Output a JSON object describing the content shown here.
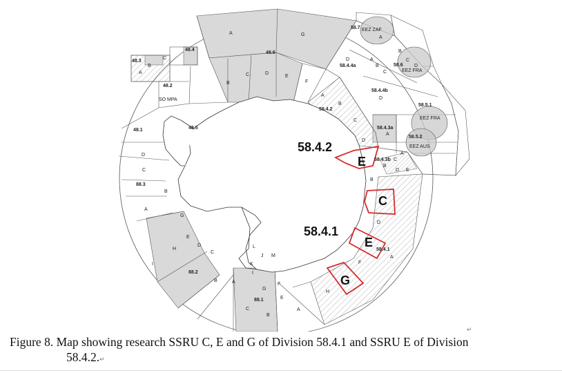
{
  "figure": {
    "caption_line1": "Figure 8. Map showing research SSRU C, E and G of Division 58.4.1 and SSRU E of Division",
    "caption_line2": "58.4.2.",
    "paragraph_mark": "↵"
  },
  "map": {
    "colors": {
      "highlight_outline": "#d42a2a",
      "shaded_area": "#d9d9d9",
      "eez_fill": "#c9c9c9",
      "line": "#555555"
    },
    "division_labels": {
      "d_48_3": "48.3",
      "d_48_4": "48.4",
      "d_48_6": "48.6",
      "d_48_2": "48.2",
      "so_mpa": "SO MPA",
      "d_48_5": "48.5",
      "d_48_1": "48.1",
      "d_88_3": "88.3",
      "d_88_2": "88.2",
      "d_88_1": "88.1",
      "d_58_7": "58.7",
      "eez_zaf": "EEZ ZAF",
      "d_58_4_4a": "58.4.4a",
      "d_58_6": "58.6",
      "eez_fra_1": "EEZ FRA",
      "d_58_4_4b": "58.4.4b",
      "d_58_5_1": "58.5.1",
      "eez_fra_2": "EEZ FRA",
      "d_58_4_2_small": "58.4.2",
      "d_58_4_3a": "58.4.3a",
      "d_58_5_2": "58.5.2",
      "eez_aus": "EEZ AUS",
      "d_58_4_3b": "58.4.3b",
      "d_58_4_1_small": "58.4.1"
    },
    "ssru_letters": {
      "l_48_3_a": "A",
      "l_48_3_b": "B",
      "l_48_3_c": "C",
      "l_48_6_a": "A",
      "l_48_6_g": "G",
      "l_48_6_b": "B",
      "l_48_6_c": "C",
      "l_48_6_d": "D",
      "l_48_6_e": "E",
      "l_48_6_f": "F",
      "l_58_4_4a_d": "D",
      "l_58_4_4a_a": "A",
      "l_58_4_4a_b": "B",
      "l_58_4_4a_c": "C",
      "l_58_7_a": "A",
      "l_58_6_b": "B",
      "l_58_6_c": "C",
      "l_58_6_d": "D",
      "l_58_4_4b_d": "D",
      "l_58_4_2_a": "A",
      "l_58_4_2_b": "B",
      "l_58_4_2_c": "C",
      "l_58_4_2_d": "D",
      "l_58_4_3a_a": "A",
      "l_58_4_3b_a": "A",
      "l_58_4_3b_b": "B",
      "l_58_4_3b_c": "C",
      "l_58_4_3b_d": "D",
      "l_58_4_3b_e": "E",
      "l_58_4_1_b": "B",
      "l_58_4_1_d": "D",
      "l_58_4_1_f": "F",
      "l_58_4_1_a": "A",
      "l_58_4_1_h": "H",
      "l_88_1_a": "A",
      "l_88_1_b": "B",
      "l_88_1_c": "C",
      "l_88_1_e": "E",
      "l_88_1_f": "F",
      "l_88_1_g": "G",
      "l_88_1_i": "I",
      "l_88_1_j": "J",
      "l_88_1_k": "K",
      "l_88_1_l": "L",
      "l_88_1_m": "M",
      "l_88_2_a": "A",
      "l_88_2_b": "B",
      "l_88_2_c": "C",
      "l_88_2_d": "D",
      "l_88_2_e": "E",
      "l_88_2_g": "G",
      "l_88_2_h": "H",
      "l_88_2_i": "I",
      "l_88_3_a": "A",
      "l_88_3_b": "B",
      "l_88_3_c": "C",
      "l_88_3_d": "D"
    },
    "highlighted": {
      "label_58_4_2": "58.4.2",
      "label_58_4_1": "58.4.1",
      "ssru_e_58_4_2": "E",
      "ssru_c_58_4_1": "C",
      "ssru_e_58_4_1": "E",
      "ssru_g_58_4_1": "G"
    }
  }
}
